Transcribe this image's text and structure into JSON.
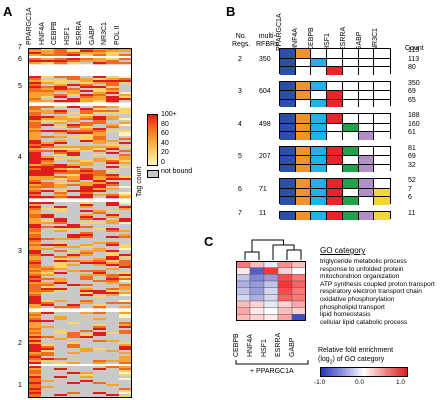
{
  "panels": {
    "a": "A",
    "b": "B",
    "c": "C"
  },
  "panelA": {
    "columns": [
      "PPARGC1A",
      "HNF4A",
      "CEBPB",
      "HSF1",
      "ESRRA",
      "GABP",
      "NR3C1",
      "POL II"
    ],
    "groups": [
      "7",
      "6",
      "5",
      "4",
      "3",
      "2",
      "1"
    ],
    "legend_title": "Tag count",
    "legend_ticks": [
      "100+",
      "80",
      "60",
      "40",
      "20",
      "0"
    ],
    "not_bound": "not bound"
  },
  "panelB": {
    "col_regs": "No.\nRegs.",
    "col_rfbrs": "multi-\nRFBRs",
    "columns": [
      "PPARGC1A",
      "HNF4A",
      "CEBPB",
      "HSF1",
      "ESRRA",
      "GABP",
      "NR3C1"
    ],
    "count_label": "Count",
    "colors": {
      "PPARGC1A": "#2d4ea8",
      "HNF4A": "#f0922e",
      "CEBPB": "#22b3e6",
      "HSF1": "#e8262a",
      "ESRRA": "#1fa24a",
      "GABP": "#b28fc7",
      "NR3C1": "#f2d43c"
    },
    "groups": [
      {
        "regs": "2",
        "rfbrs": "350",
        "rows": [
          {
            "count": "115",
            "on": [
              1,
              1,
              0,
              0,
              0,
              0,
              0
            ]
          },
          {
            "count": "113",
            "on": [
              1,
              0,
              1,
              0,
              0,
              0,
              0
            ]
          },
          {
            "count": "80",
            "on": [
              1,
              0,
              0,
              1,
              0,
              0,
              0
            ]
          }
        ]
      },
      {
        "regs": "3",
        "rfbrs": "604",
        "rows": [
          {
            "count": "350",
            "on": [
              1,
              1,
              1,
              0,
              0,
              0,
              0
            ]
          },
          {
            "count": "69",
            "on": [
              1,
              1,
              0,
              1,
              0,
              0,
              0
            ]
          },
          {
            "count": "65",
            "on": [
              1,
              0,
              1,
              1,
              0,
              0,
              0
            ]
          }
        ]
      },
      {
        "regs": "4",
        "rfbrs": "498",
        "rows": [
          {
            "count": "188",
            "on": [
              1,
              1,
              1,
              1,
              0,
              0,
              0
            ]
          },
          {
            "count": "160",
            "on": [
              1,
              1,
              1,
              0,
              1,
              0,
              0
            ]
          },
          {
            "count": "61",
            "on": [
              1,
              1,
              1,
              0,
              0,
              1,
              0
            ]
          }
        ]
      },
      {
        "regs": "5",
        "rfbrs": "207",
        "rows": [
          {
            "count": "81",
            "on": [
              1,
              1,
              1,
              1,
              1,
              0,
              0
            ]
          },
          {
            "count": "69",
            "on": [
              1,
              1,
              1,
              1,
              0,
              1,
              0
            ]
          },
          {
            "count": "32",
            "on": [
              1,
              1,
              1,
              0,
              1,
              1,
              0
            ]
          }
        ]
      },
      {
        "regs": "6",
        "rfbrs": "71",
        "rows": [
          {
            "count": "52",
            "on": [
              1,
              1,
              1,
              1,
              1,
              1,
              0
            ]
          },
          {
            "count": "7",
            "on": [
              1,
              1,
              1,
              1,
              0,
              1,
              1
            ]
          },
          {
            "count": "6",
            "on": [
              1,
              1,
              1,
              1,
              1,
              0,
              1
            ]
          }
        ]
      },
      {
        "regs": "7",
        "rfbrs": "11",
        "rows": [
          {
            "count": "11",
            "on": [
              1,
              1,
              1,
              1,
              1,
              1,
              1
            ]
          }
        ]
      }
    ]
  },
  "panelC": {
    "category_title": "GO category",
    "categories": [
      "triglyceride metabolic process",
      "response to unfolded protein",
      "mitochondrion organization",
      "ATP synthesis coupled proton transport",
      "respiratory electron transport chain",
      "oxidative phosphorylation",
      "phospholipid transport",
      "lipid homeostasis",
      "cellular lipid catabolic process"
    ],
    "columns": [
      "CEBPB",
      "HNF4A",
      "HSF1",
      "ESRRA",
      "GABP"
    ],
    "bracket_label": "+ PPARGC1A",
    "values": [
      [
        0.6,
        0.3,
        -0.1,
        0.5,
        0.3
      ],
      [
        0.1,
        -0.8,
        0.9,
        0.2,
        0.0
      ],
      [
        -0.3,
        -0.6,
        -0.5,
        0.8,
        0.6
      ],
      [
        -0.4,
        -0.5,
        -0.3,
        0.9,
        0.7
      ],
      [
        -0.3,
        -0.5,
        -0.2,
        0.8,
        0.6
      ],
      [
        -0.2,
        -0.4,
        -0.2,
        0.7,
        0.6
      ],
      [
        0.3,
        0.2,
        -0.1,
        0.2,
        0.4
      ],
      [
        0.4,
        0.1,
        0.0,
        0.3,
        0.2
      ],
      [
        0.3,
        0.2,
        0.1,
        0.4,
        -0.9
      ]
    ],
    "legend_title_1": "Relative fold enrichment",
    "legend_title_2": "(log",
    "legend_title_sub": "2",
    "legend_title_3": ") of GO category",
    "legend_ticks": [
      "-1.0",
      "0.0",
      "1.0"
    ]
  }
}
